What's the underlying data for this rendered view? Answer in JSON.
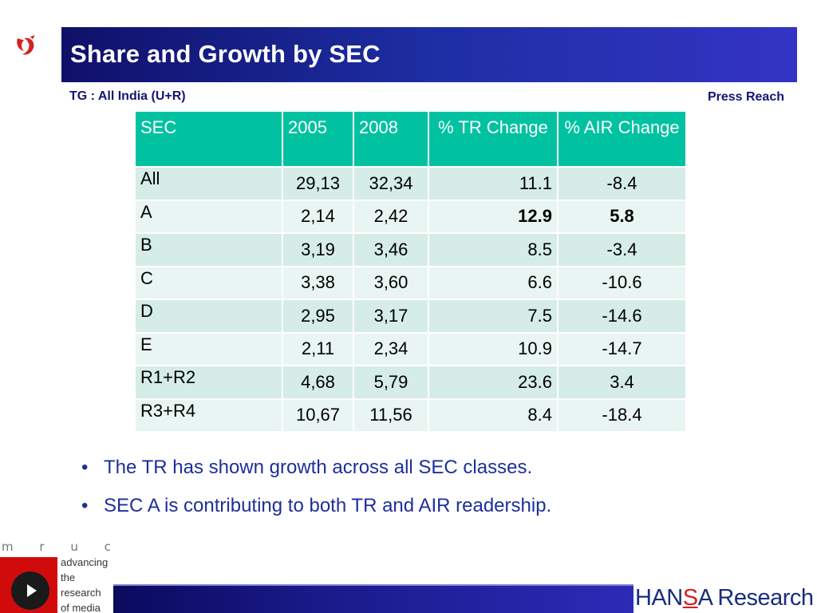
{
  "title": "Share and Growth by SEC",
  "tg_label": "TG : All India (U+R)",
  "corner_label": "Press Reach",
  "table": {
    "headers": [
      "SEC",
      "2005",
      "2008",
      "% TR Change",
      "%  AIR Change"
    ],
    "rows": [
      {
        "sec": "All",
        "y2005": "29,13",
        "y2008": "32,34",
        "tr": "11.1",
        "air": "-8.4",
        "bold": false
      },
      {
        "sec": "A",
        "y2005": "2,14",
        "y2008": "2,42",
        "tr": "12.9",
        "air": "5.8",
        "bold": true
      },
      {
        "sec": "B",
        "y2005": "3,19",
        "y2008": "3,46",
        "tr": "8.5",
        "air": "-3.4",
        "bold": false
      },
      {
        "sec": "C",
        "y2005": "3,38",
        "y2008": "3,60",
        "tr": "6.6",
        "air": "-10.6",
        "bold": false
      },
      {
        "sec": "D",
        "y2005": "2,95",
        "y2008": "3,17",
        "tr": "7.5",
        "air": "-14.6",
        "bold": false
      },
      {
        "sec": "E",
        "y2005": "2,11",
        "y2008": "2,34",
        "tr": "10.9",
        "air": "-14.7",
        "bold": false
      },
      {
        "sec": "R1+R2",
        "y2005": "4,68",
        "y2008": "5,79",
        "tr": "23.6",
        "air": "3.4",
        "bold": false
      },
      {
        "sec": "R3+R4",
        "y2005": "10,67",
        "y2008": "11,56",
        "tr": "8.4",
        "air": "-18.4",
        "bold": false
      }
    ]
  },
  "bullets": [
    "The TR has shown growth across all SEC classes.",
    "SEC A is contributing to both TR and AIR readership."
  ],
  "footer": {
    "mruc_letters": "m r u c",
    "mruc_tagline": [
      "advancing",
      "the",
      "research",
      "of media"
    ],
    "hansa_pre": "HAN",
    "hansa_s": "S",
    "hansa_post": "A Research"
  },
  "colors": {
    "header_teal": "#00c2a1",
    "title_blue": "#1d2ea3",
    "accent_red": "#d10b0b"
  }
}
